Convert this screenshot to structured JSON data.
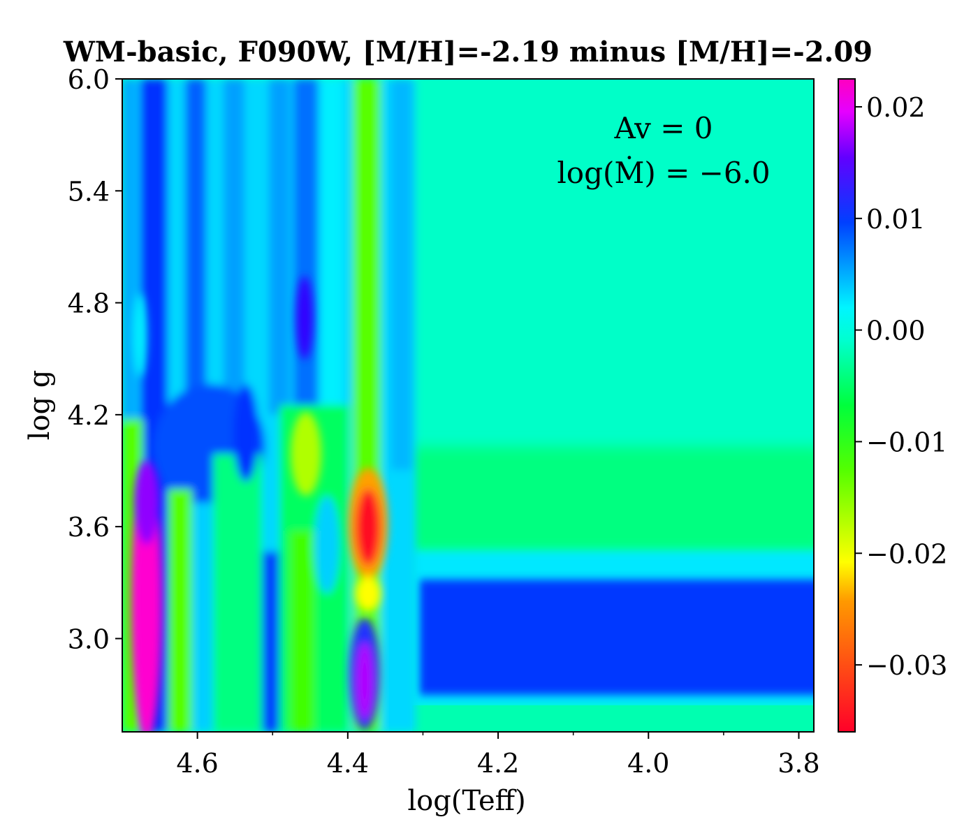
{
  "chart_data": {
    "type": "heatmap",
    "title": "WM-basic, F090W, [M/H]=-2.19 minus [M/H]=-2.09",
    "xlabel": "log(Teff)",
    "ylabel": "log g",
    "xlim": [
      4.7,
      3.78
    ],
    "ylim": [
      2.5,
      6.0
    ],
    "x_ticks": [
      4.6,
      4.4,
      4.2,
      4.0,
      3.8
    ],
    "x_tick_labels": [
      "4.6",
      "4.4",
      "4.2",
      "4.0",
      "3.8"
    ],
    "y_ticks": [
      3.0,
      3.6,
      4.2,
      4.8,
      5.4,
      6.0
    ],
    "y_tick_labels": [
      "3.0",
      "3.6",
      "4.2",
      "4.8",
      "5.4",
      "6.0"
    ],
    "colorbar": {
      "min": -0.036,
      "max": 0.0225,
      "ticks": [
        0.02,
        0.01,
        0.0,
        -0.01,
        -0.02,
        -0.03
      ],
      "tick_labels": [
        "0.02",
        "0.01",
        "0.00",
        "−0.01",
        "−0.02",
        "−0.03"
      ],
      "colormap": "gist_rainbow"
    },
    "annotations": [
      "Av  =  0",
      "log(Ṁ) = −6.0"
    ],
    "features": [
      {
        "logTeff": 4.66,
        "logg": 3.2,
        "value": 0.022
      },
      {
        "logTeff": 4.38,
        "logg": 3.6,
        "value": -0.032
      },
      {
        "logTeff": 4.38,
        "logg": 2.8,
        "value": 0.017
      },
      {
        "logTeff": 4.45,
        "logg": 4.7,
        "value": 0.012
      },
      {
        "logTeff": 4.45,
        "logg": 4.0,
        "value": -0.013
      },
      {
        "logTeff": 4.0,
        "logg": 5.0,
        "value": -0.006
      },
      {
        "logTeff": 4.0,
        "logg": 3.0,
        "value": 0.011
      }
    ]
  }
}
